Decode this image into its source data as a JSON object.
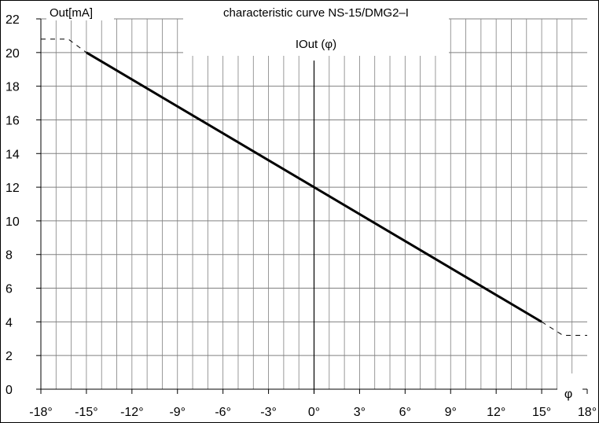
{
  "chart_data": {
    "type": "line",
    "title": "characteristic curve NS-15/DMG2–I",
    "subtitle": "IOut (φ)",
    "ylabel": "Out[mA]",
    "xlabel": "φ",
    "xlim": [
      -18,
      18
    ],
    "ylim": [
      0,
      22
    ],
    "x_ticks": [
      -18,
      -15,
      -12,
      -9,
      -6,
      -3,
      0,
      3,
      6,
      9,
      12,
      15,
      18
    ],
    "x_tick_labels": [
      "-18°",
      "-15°",
      "-12°",
      "-9°",
      "-6°",
      "-3°",
      "0°",
      "3°",
      "6°",
      "9°",
      "12°",
      "15°",
      "18°"
    ],
    "y_ticks": [
      0,
      2,
      4,
      6,
      8,
      10,
      12,
      14,
      16,
      18,
      20,
      22
    ],
    "y_tick_labels": [
      "0",
      "2",
      "4",
      "6",
      "8",
      "10",
      "12",
      "14",
      "16",
      "18",
      "20",
      "22"
    ],
    "grid": true,
    "series": [
      {
        "style": "solid",
        "x": [
          -15,
          15
        ],
        "y": [
          20,
          4
        ]
      },
      {
        "style": "dashed",
        "x": [
          -18,
          -16.2,
          -15
        ],
        "y": [
          20.8,
          20.8,
          20
        ]
      },
      {
        "style": "dashed",
        "x": [
          15,
          16.4,
          18
        ],
        "y": [
          4,
          3.2,
          3.2
        ]
      }
    ],
    "colors": {
      "line": "#000000",
      "grid": "#808080",
      "background": "#ffffff"
    }
  }
}
